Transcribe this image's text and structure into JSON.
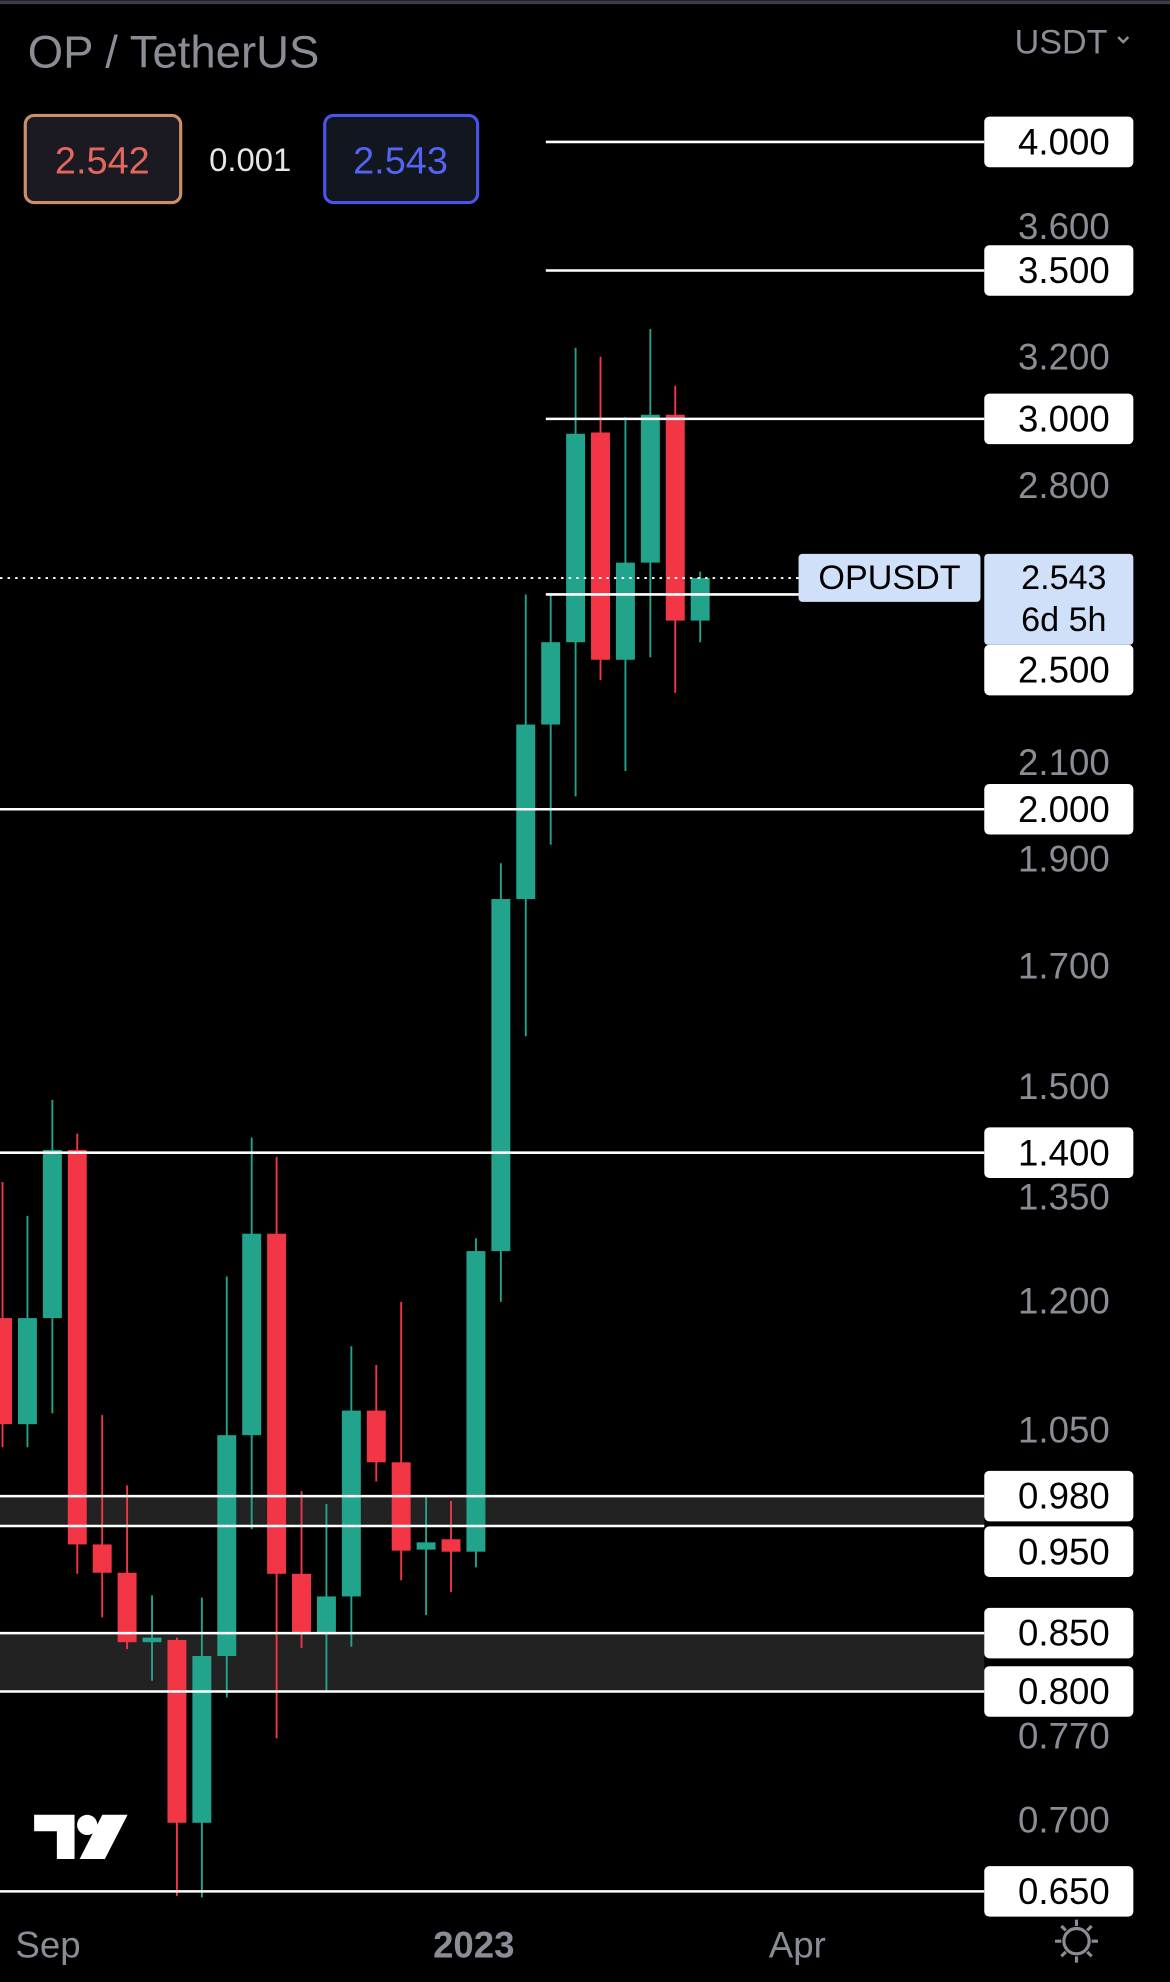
{
  "header": {
    "title": "OP / TetherUS",
    "currency": "USDT",
    "currency_icon": "chevron-down-icon",
    "bid": "2.542",
    "spread": "0.001",
    "ask": "2.543"
  },
  "colors": {
    "up": "#22a38c",
    "down": "#f23645",
    "bid_border": "#c9906a",
    "bid_text": "#e2675e",
    "ask_border": "#4a55e8",
    "ask_text": "#5563f2",
    "axis_text": "#8a8d96",
    "price_tag": "#cfe0f8"
  },
  "price_tag": {
    "symbol": "OPUSDT",
    "price": "2.543",
    "countdown": "6d 5h"
  },
  "footer": {
    "logo": "TradingView",
    "settings_icon": "gear-icon"
  },
  "chart_data": {
    "type": "candlestick",
    "interval": "weekly",
    "y_scale": "log",
    "ylim": [
      0.62,
      4.3
    ],
    "x_ticks": [
      "Sep",
      "2023",
      "Apr"
    ],
    "y_ticks": [
      "3.600",
      "3.200",
      "2.800",
      "2.100",
      "1.900",
      "1.700",
      "1.500",
      "1.350",
      "1.200",
      "1.050",
      "0.770",
      "0.700"
    ],
    "y_tick_values": [
      3.6,
      3.2,
      2.8,
      2.1,
      1.9,
      1.7,
      1.5,
      1.35,
      1.2,
      1.05,
      0.77,
      0.7
    ],
    "levels": [
      {
        "label": "4.000",
        "value": 4.0,
        "span": "right"
      },
      {
        "label": "3.500",
        "value": 3.5,
        "span": "right"
      },
      {
        "label": "3.000",
        "value": 3.0,
        "span": "right"
      },
      {
        "label": "2.500",
        "value": 2.5,
        "span": "right"
      },
      {
        "label": "2.000",
        "value": 2.0,
        "span": "full"
      },
      {
        "label": "1.400",
        "value": 1.4,
        "span": "full"
      },
      {
        "label": "0.980",
        "value": 0.98,
        "span": "full"
      },
      {
        "label": "0.950",
        "value": 0.95,
        "span": "full"
      },
      {
        "label": "0.850",
        "value": 0.85,
        "span": "full"
      },
      {
        "label": "0.800",
        "value": 0.8,
        "span": "full"
      },
      {
        "label": "0.650",
        "value": 0.65,
        "span": "full"
      }
    ],
    "zones": [
      [
        0.95,
        0.98
      ],
      [
        0.8,
        0.85
      ]
    ],
    "last_price": 2.543,
    "candles": [
      {
        "o": 1.179,
        "h": 1.358,
        "l": 1.031,
        "c": 1.056
      },
      {
        "o": 1.056,
        "h": 1.311,
        "l": 1.031,
        "c": 1.179
      },
      {
        "o": 1.179,
        "h": 1.479,
        "l": 1.068,
        "c": 1.404
      },
      {
        "o": 1.404,
        "h": 1.428,
        "l": 0.904,
        "c": 0.932
      },
      {
        "o": 0.932,
        "h": 1.066,
        "l": 0.864,
        "c": 0.905
      },
      {
        "o": 0.905,
        "h": 0.991,
        "l": 0.836,
        "c": 0.842
      },
      {
        "o": 0.842,
        "h": 0.884,
        "l": 0.809,
        "c": 0.846
      },
      {
        "o": 0.844,
        "h": 0.846,
        "l": 0.647,
        "c": 0.698
      },
      {
        "o": 0.698,
        "h": 0.882,
        "l": 0.646,
        "c": 0.83
      },
      {
        "o": 0.83,
        "h": 1.231,
        "l": 0.795,
        "c": 1.044
      },
      {
        "o": 1.044,
        "h": 1.422,
        "l": 0.947,
        "c": 1.287
      },
      {
        "o": 1.287,
        "h": 1.394,
        "l": 0.762,
        "c": 0.904
      },
      {
        "o": 0.904,
        "h": 0.985,
        "l": 0.837,
        "c": 0.849
      },
      {
        "o": 0.849,
        "h": 0.972,
        "l": 0.8,
        "c": 0.883
      },
      {
        "o": 0.883,
        "h": 1.145,
        "l": 0.838,
        "c": 1.071
      },
      {
        "o": 1.071,
        "h": 1.123,
        "l": 0.995,
        "c": 1.015
      },
      {
        "o": 1.015,
        "h": 1.199,
        "l": 0.898,
        "c": 0.926
      },
      {
        "o": 0.927,
        "h": 0.981,
        "l": 0.866,
        "c": 0.934
      },
      {
        "o": 0.937,
        "h": 0.975,
        "l": 0.887,
        "c": 0.925
      },
      {
        "o": 0.925,
        "h": 1.281,
        "l": 0.91,
        "c": 1.264
      },
      {
        "o": 1.264,
        "h": 1.891,
        "l": 1.199,
        "c": 1.822
      },
      {
        "o": 1.822,
        "h": 2.5,
        "l": 1.58,
        "c": 2.184
      },
      {
        "o": 2.184,
        "h": 2.5,
        "l": 1.928,
        "c": 2.379
      },
      {
        "o": 2.379,
        "h": 3.23,
        "l": 2.027,
        "c": 2.954
      },
      {
        "o": 2.958,
        "h": 3.2,
        "l": 2.287,
        "c": 2.336
      },
      {
        "o": 2.336,
        "h": 3.005,
        "l": 2.081,
        "c": 2.584
      },
      {
        "o": 2.584,
        "h": 3.294,
        "l": 2.342,
        "c": 3.013
      },
      {
        "o": 3.013,
        "h": 3.105,
        "l": 2.257,
        "c": 2.433
      },
      {
        "o": 2.433,
        "h": 2.56,
        "l": 2.379,
        "c": 2.543
      }
    ]
  }
}
